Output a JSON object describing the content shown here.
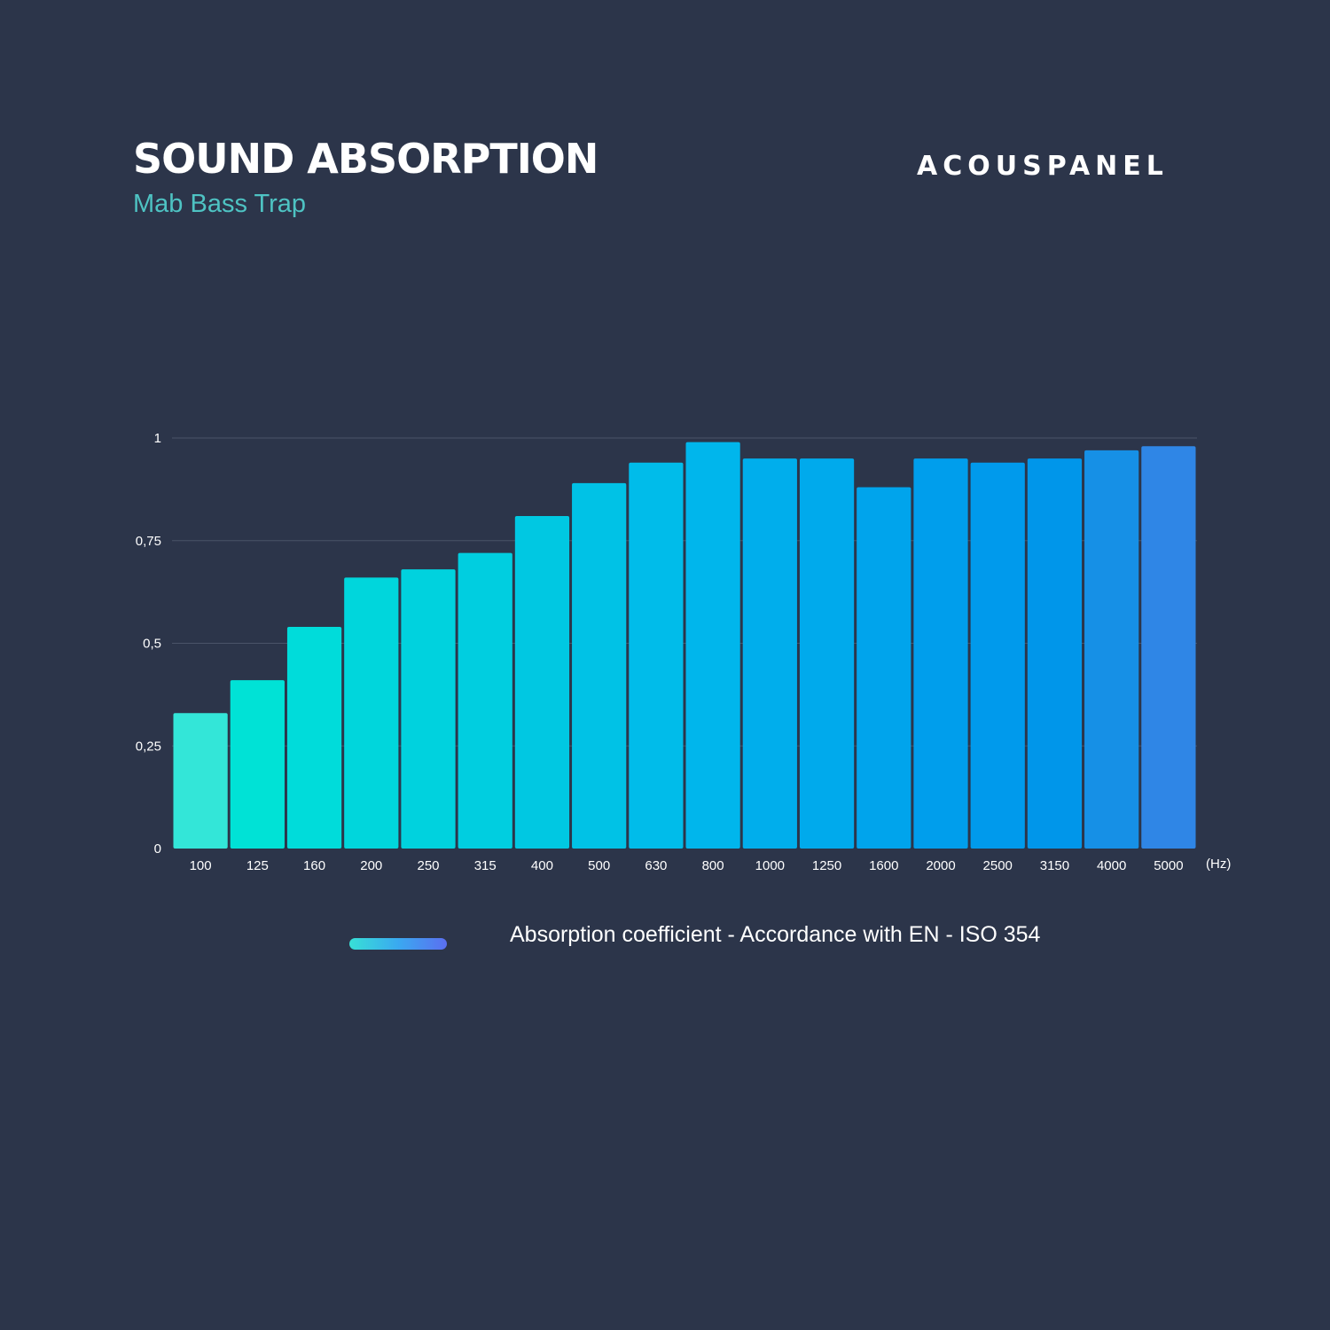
{
  "header": {
    "title": "SOUND ABSORPTION",
    "subtitle": "Mab Bass Trap",
    "brand": "ACOUSPANEL"
  },
  "chart_data": {
    "type": "bar",
    "categories": [
      "100",
      "125",
      "160",
      "200",
      "250",
      "315",
      "400",
      "500",
      "630",
      "800",
      "1000",
      "1250",
      "1600",
      "2000",
      "2500",
      "3150",
      "4000",
      "5000"
    ],
    "values": [
      0.33,
      0.41,
      0.54,
      0.66,
      0.68,
      0.72,
      0.81,
      0.89,
      0.94,
      0.99,
      0.95,
      0.95,
      0.88,
      0.95,
      0.94,
      0.95,
      0.97,
      0.98
    ],
    "colors": [
      "#33e6d8",
      "#00e2d6",
      "#00dcda",
      "#00d6dc",
      "#00d2de",
      "#00cee0",
      "#00c8e2",
      "#00c2e6",
      "#00bcea",
      "#00b6ec",
      "#00aeec",
      "#00aaec",
      "#00a4ec",
      "#009eec",
      "#009aec",
      "#0096ea",
      "#1690e6",
      "#2f86e6"
    ],
    "xlabel": "(Hz)",
    "ylabel": "",
    "ylim": [
      0,
      1
    ],
    "yticks": [
      0,
      0.25,
      0.5,
      0.75,
      1
    ],
    "ytick_labels": [
      "0",
      "0,25",
      "0,5",
      "0,75",
      "1"
    ],
    "grid": true,
    "legend": {
      "label": "Absorption coefficient - Accordance with EN - ISO 354",
      "position": "bottom"
    }
  }
}
